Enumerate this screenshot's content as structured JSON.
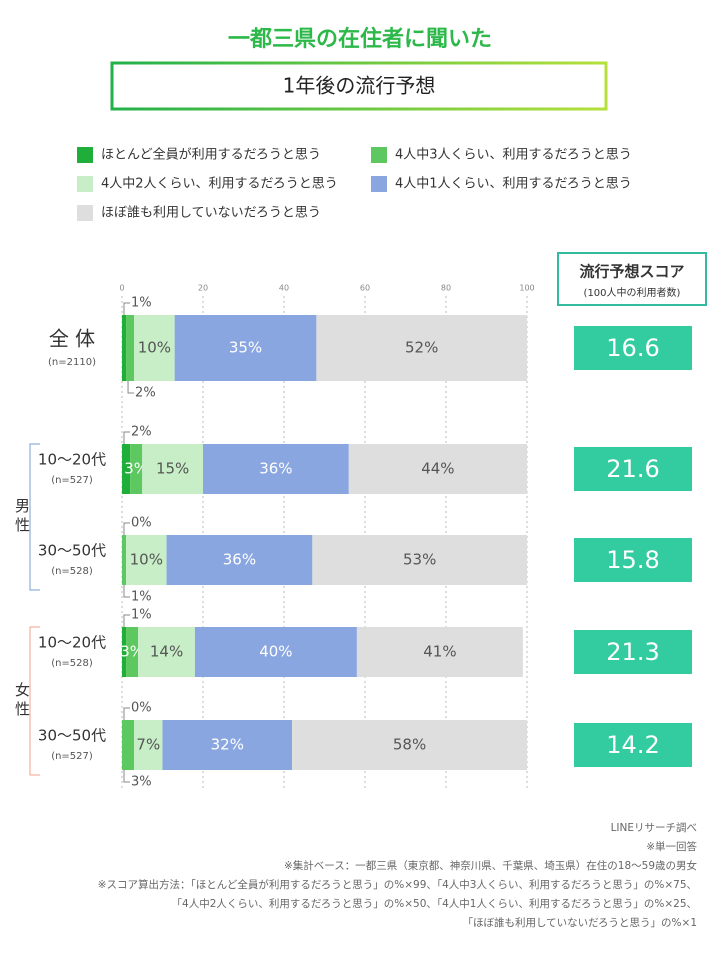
{
  "chart_data": {
    "type": "stacked-bar",
    "title": "一都三県の在住者に聞いた",
    "subtitle": "1年後の流行予想",
    "categories": [
      "全 体",
      "10〜20代",
      "30〜50代",
      "10〜20代",
      "30〜50代"
    ],
    "sample_sizes": [
      "(n=2110)",
      "(n=527)",
      "(n=528)",
      "(n=528)",
      "(n=527)"
    ],
    "groups": [
      "男性",
      "女性"
    ],
    "xlim": [
      0,
      100
    ],
    "xticks": [
      0,
      20,
      40,
      60,
      80,
      100
    ],
    "series": [
      {
        "name": "ほとんど全員が利用するだろうと思う",
        "color": "#1fae3a",
        "values": [
          1,
          2,
          0,
          1,
          0
        ],
        "value_labels": [
          "1%",
          "2%",
          "0%",
          "1%",
          "0%"
        ]
      },
      {
        "name": "4人中3人くらい、利用するだろうと思う",
        "color": "#5cc85f",
        "values": [
          2,
          3,
          1,
          3,
          3
        ],
        "value_labels": [
          "2%",
          "3%",
          "1%",
          "3%",
          "3%"
        ]
      },
      {
        "name": "4人中2人くらい、利用するだろうと思う",
        "color": "#c8eec8",
        "values": [
          10,
          15,
          10,
          14,
          7
        ],
        "value_labels": [
          "10%",
          "15%",
          "10%",
          "14%",
          "7%"
        ]
      },
      {
        "name": "4人中1人くらい、利用するだろうと思う",
        "color": "#8aa6e0",
        "values": [
          35,
          36,
          36,
          40,
          32
        ],
        "value_labels": [
          "35%",
          "36%",
          "36%",
          "40%",
          "32%"
        ]
      },
      {
        "name": "ほぼ誰も利用していないだろうと思う",
        "color": "#dedede",
        "values": [
          52,
          44,
          53,
          41,
          58
        ],
        "value_labels": [
          "52%",
          "44%",
          "53%",
          "41%",
          "58%"
        ]
      }
    ],
    "score_title": "流行予想スコア",
    "score_subtitle": "(100人中の利用者数)",
    "scores": [
      16.6,
      21.6,
      15.8,
      21.3,
      14.2
    ],
    "score_color": "#33cca0",
    "notes": [
      "LINEリサーチ調べ",
      "※単一回答",
      "※集計ベース：一都三県（東京都、神奈川県、千葉県、埼玉県）在住の18～59歳の男女",
      "※スコア算出方法：「ほとんど全員が利用するだろうと思う」の%×99、「4人中3人くらい、利用するだろうと思う」の%×75、",
      "「4人中2人くらい、利用するだろうと思う」の%×50、「4人中1人くらい、利用するだろうと思う」の%×25、",
      "「ほぼ誰も利用していないだろうと思う」の%×1"
    ]
  }
}
